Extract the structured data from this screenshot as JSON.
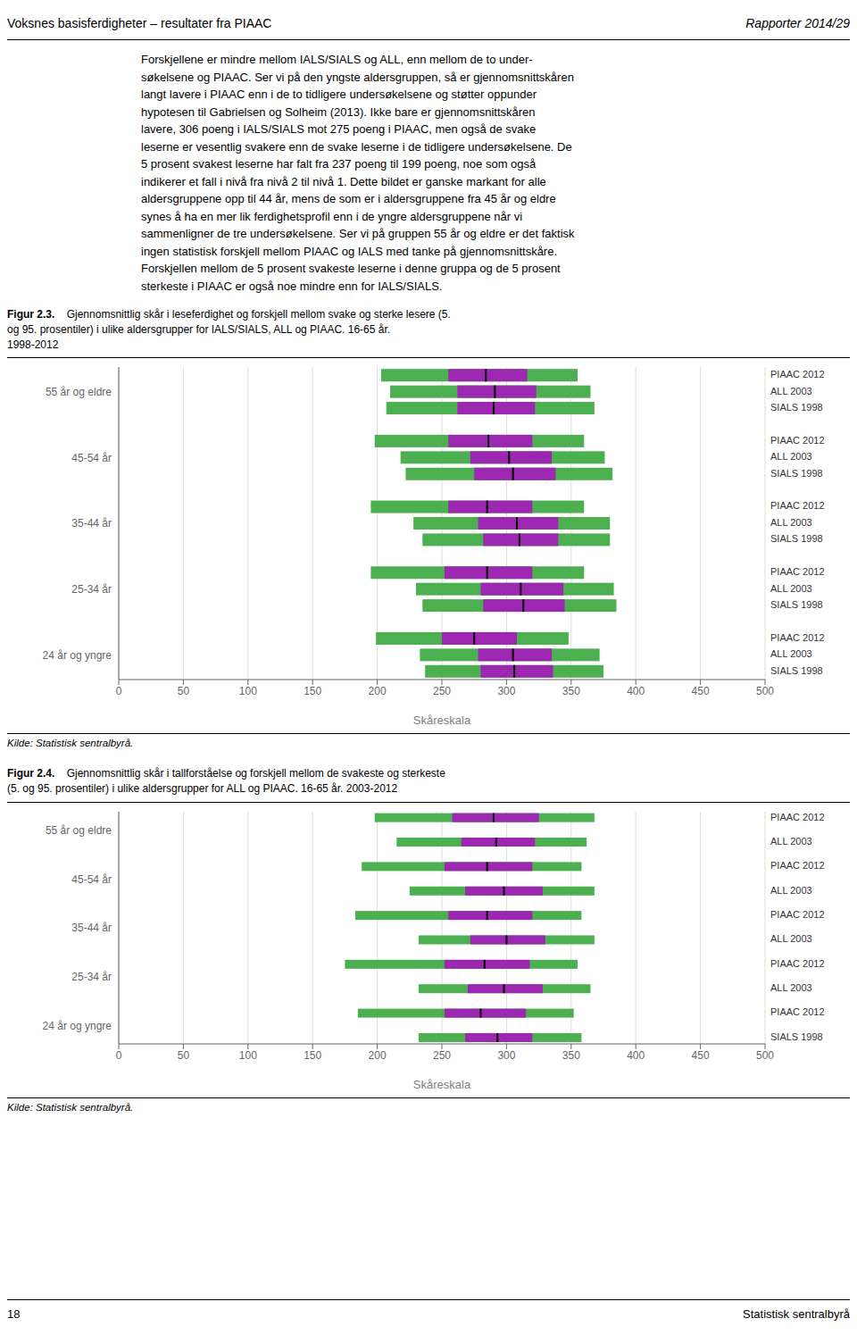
{
  "title": "Voksnes basisferdigheter – resultater fra PIAAC",
  "annotations": [
    "Rapporter 2014/29",
    "Forskjellene er mindre mellom IALS/SIALS og ALL, enn mellom de to under-\nsøkelsene og PIAAC. Ser vi på den yngste aldersgruppen, så er gjennomsnittskåren\nlangt lavere i PIAAC enn i de to tidligere undersøkelsene og støtter oppunder\nhypotesen til Gabrielsen og Solheim (2013). Ikke bare er gjennomsnittskåren\nlavere, 306 poeng i IALS/SIALS mot 275 poeng i PIAAC, men også de svake\nleserne er vesentlig svakere enn de svake leserne i de tidligere undersøkelsene. De\n5 prosent svakest leserne har falt fra 237 poeng til 199 poeng, noe som også\nindikerer et fall i nivå fra nivå 2 til nivå 1. Dette bildet er ganske markant for alle\naldersgruppene opp til 44 år, mens de som er i aldersgruppene fra 45 år og eldre\nsynes å ha en mer lik ferdighetsprofil enn i de yngre aldersgruppene når vi\nsammenligner de tre undersøkelsene. Ser vi på gruppen 55 år og eldre er det faktisk\ningen statistisk forskjell mellom PIAAC og IALS med tanke på gjennomsnittskåre.\nForskjellen mellom de 5 prosent svakeste leserne i denne gruppa og de 5 prosent\nsterkeste i PIAAC er også noe mindre enn for IALS/SIALS.",
    "18",
    "Statistisk sentralbyrå"
  ],
  "chart_data": [
    {
      "type": "bar",
      "orientation": "horizontal",
      "title": "Figur 2.3.",
      "subtitle": "Gjennomsnittlig skår i leseferdighet og forskjell mellom svake og sterke lesere (5.\nog 95. prosentiler) i ulike aldersgrupper for IALS/SIALS, ALL og PIAAC. 16-65 år.\n1998-2012",
      "xlabel": "Skåreskala",
      "annotations": [
        "Kilde: Statistisk sentralbyrå."
      ],
      "categories": [
        "55 år og eldre",
        "45-54 år",
        "35-44 år",
        "25-34 år",
        "24 år og yngre"
      ],
      "values": [
        [
          {
            "label": "SIALS 1998",
            "p5": 207,
            "p25": 262,
            "mean": 290,
            "p75": 322,
            "p95": 368
          },
          {
            "label": "ALL 2003",
            "p5": 210,
            "p25": 262,
            "mean": 291,
            "p75": 323,
            "p95": 365
          },
          {
            "label": "PIAAC 2012",
            "p5": 203,
            "p25": 255,
            "mean": 284,
            "p75": 316,
            "p95": 355
          }
        ],
        [
          {
            "label": "SIALS 1998",
            "p5": 222,
            "p25": 275,
            "mean": 305,
            "p75": 338,
            "p95": 382
          },
          {
            "label": "ALL 2003",
            "p5": 218,
            "p25": 272,
            "mean": 302,
            "p75": 335,
            "p95": 376
          },
          {
            "label": "PIAAC 2012",
            "p5": 198,
            "p25": 255,
            "mean": 286,
            "p75": 320,
            "p95": 360
          }
        ],
        [
          {
            "label": "SIALS 1998",
            "p5": 235,
            "p25": 282,
            "mean": 310,
            "p75": 340,
            "p95": 380
          },
          {
            "label": "ALL 2003",
            "p5": 228,
            "p25": 278,
            "mean": 308,
            "p75": 340,
            "p95": 380
          },
          {
            "label": "PIAAC 2012",
            "p5": 195,
            "p25": 255,
            "mean": 285,
            "p75": 320,
            "p95": 360
          }
        ],
        [
          {
            "label": "SIALS 1998",
            "p5": 235,
            "p25": 282,
            "mean": 313,
            "p75": 345,
            "p95": 385
          },
          {
            "label": "ALL 2003",
            "p5": 230,
            "p25": 280,
            "mean": 311,
            "p75": 344,
            "p95": 383
          },
          {
            "label": "PIAAC 2012",
            "p5": 195,
            "p25": 252,
            "mean": 285,
            "p75": 320,
            "p95": 360
          }
        ],
        [
          {
            "label": "SIALS 1998",
            "p5": 237,
            "p25": 280,
            "mean": 306,
            "p75": 336,
            "p95": 375
          },
          {
            "label": "ALL 2003",
            "p5": 233,
            "p25": 278,
            "mean": 305,
            "p75": 335,
            "p95": 372
          },
          {
            "label": "PIAAC 2012",
            "p5": 199,
            "p25": 250,
            "mean": 275,
            "p75": 308,
            "p95": 348
          }
        ]
      ],
      "xlim": [
        0,
        500
      ],
      "xticks": [
        0,
        50,
        100,
        150,
        200,
        250,
        300,
        350,
        400,
        450,
        500
      ],
      "grid": true,
      "colors": [
        "#4CAF50",
        "#9C27B0",
        "#000000"
      ]
    },
    {
      "type": "bar",
      "orientation": "horizontal",
      "title": "Figur 2.4.",
      "subtitle": "Gjennomsnittlig skår i tallforståelse og forskjell mellom de svakeste og sterkeste\n(5. og 95. prosentiler) i ulike aldersgrupper for ALL og PIAAC. 16-65 år. 2003-2012",
      "xlabel": "Skåreskala",
      "annotations": [
        "Kilde: Statistisk sentralbyrå."
      ],
      "categories": [
        "55 år og eldre",
        "45-54 år",
        "35-44 år",
        "25-34 år",
        "24 år og yngre"
      ],
      "values": [
        [
          {
            "label": "ALL 2003",
            "p5": 215,
            "p25": 265,
            "mean": 292,
            "p75": 322,
            "p95": 362
          },
          {
            "label": "PIAAC 2012",
            "p5": 198,
            "p25": 258,
            "mean": 290,
            "p75": 325,
            "p95": 368
          }
        ],
        [
          {
            "label": "ALL 2003",
            "p5": 225,
            "p25": 268,
            "mean": 298,
            "p75": 328,
            "p95": 368
          },
          {
            "label": "PIAAC 2012",
            "p5": 188,
            "p25": 252,
            "mean": 285,
            "p75": 320,
            "p95": 358
          }
        ],
        [
          {
            "label": "ALL 2003",
            "p5": 232,
            "p25": 272,
            "mean": 300,
            "p75": 330,
            "p95": 368
          },
          {
            "label": "PIAAC 2012",
            "p5": 183,
            "p25": 255,
            "mean": 285,
            "p75": 320,
            "p95": 358
          }
        ],
        [
          {
            "label": "ALL 2003",
            "p5": 232,
            "p25": 270,
            "mean": 298,
            "p75": 328,
            "p95": 365
          },
          {
            "label": "PIAAC 2012",
            "p5": 175,
            "p25": 252,
            "mean": 283,
            "p75": 318,
            "p95": 355
          }
        ],
        [
          {
            "label": "SIALS 1998",
            "p5": 232,
            "p25": 268,
            "mean": 293,
            "p75": 320,
            "p95": 358
          },
          {
            "label": "PIAAC 2012",
            "p5": 185,
            "p25": 252,
            "mean": 280,
            "p75": 315,
            "p95": 352
          }
        ]
      ],
      "xlim": [
        0,
        500
      ],
      "xticks": [
        0,
        50,
        100,
        150,
        200,
        250,
        300,
        350,
        400,
        450,
        500
      ],
      "grid": true,
      "colors": [
        "#4CAF50",
        "#9C27B0",
        "#000000"
      ]
    }
  ]
}
